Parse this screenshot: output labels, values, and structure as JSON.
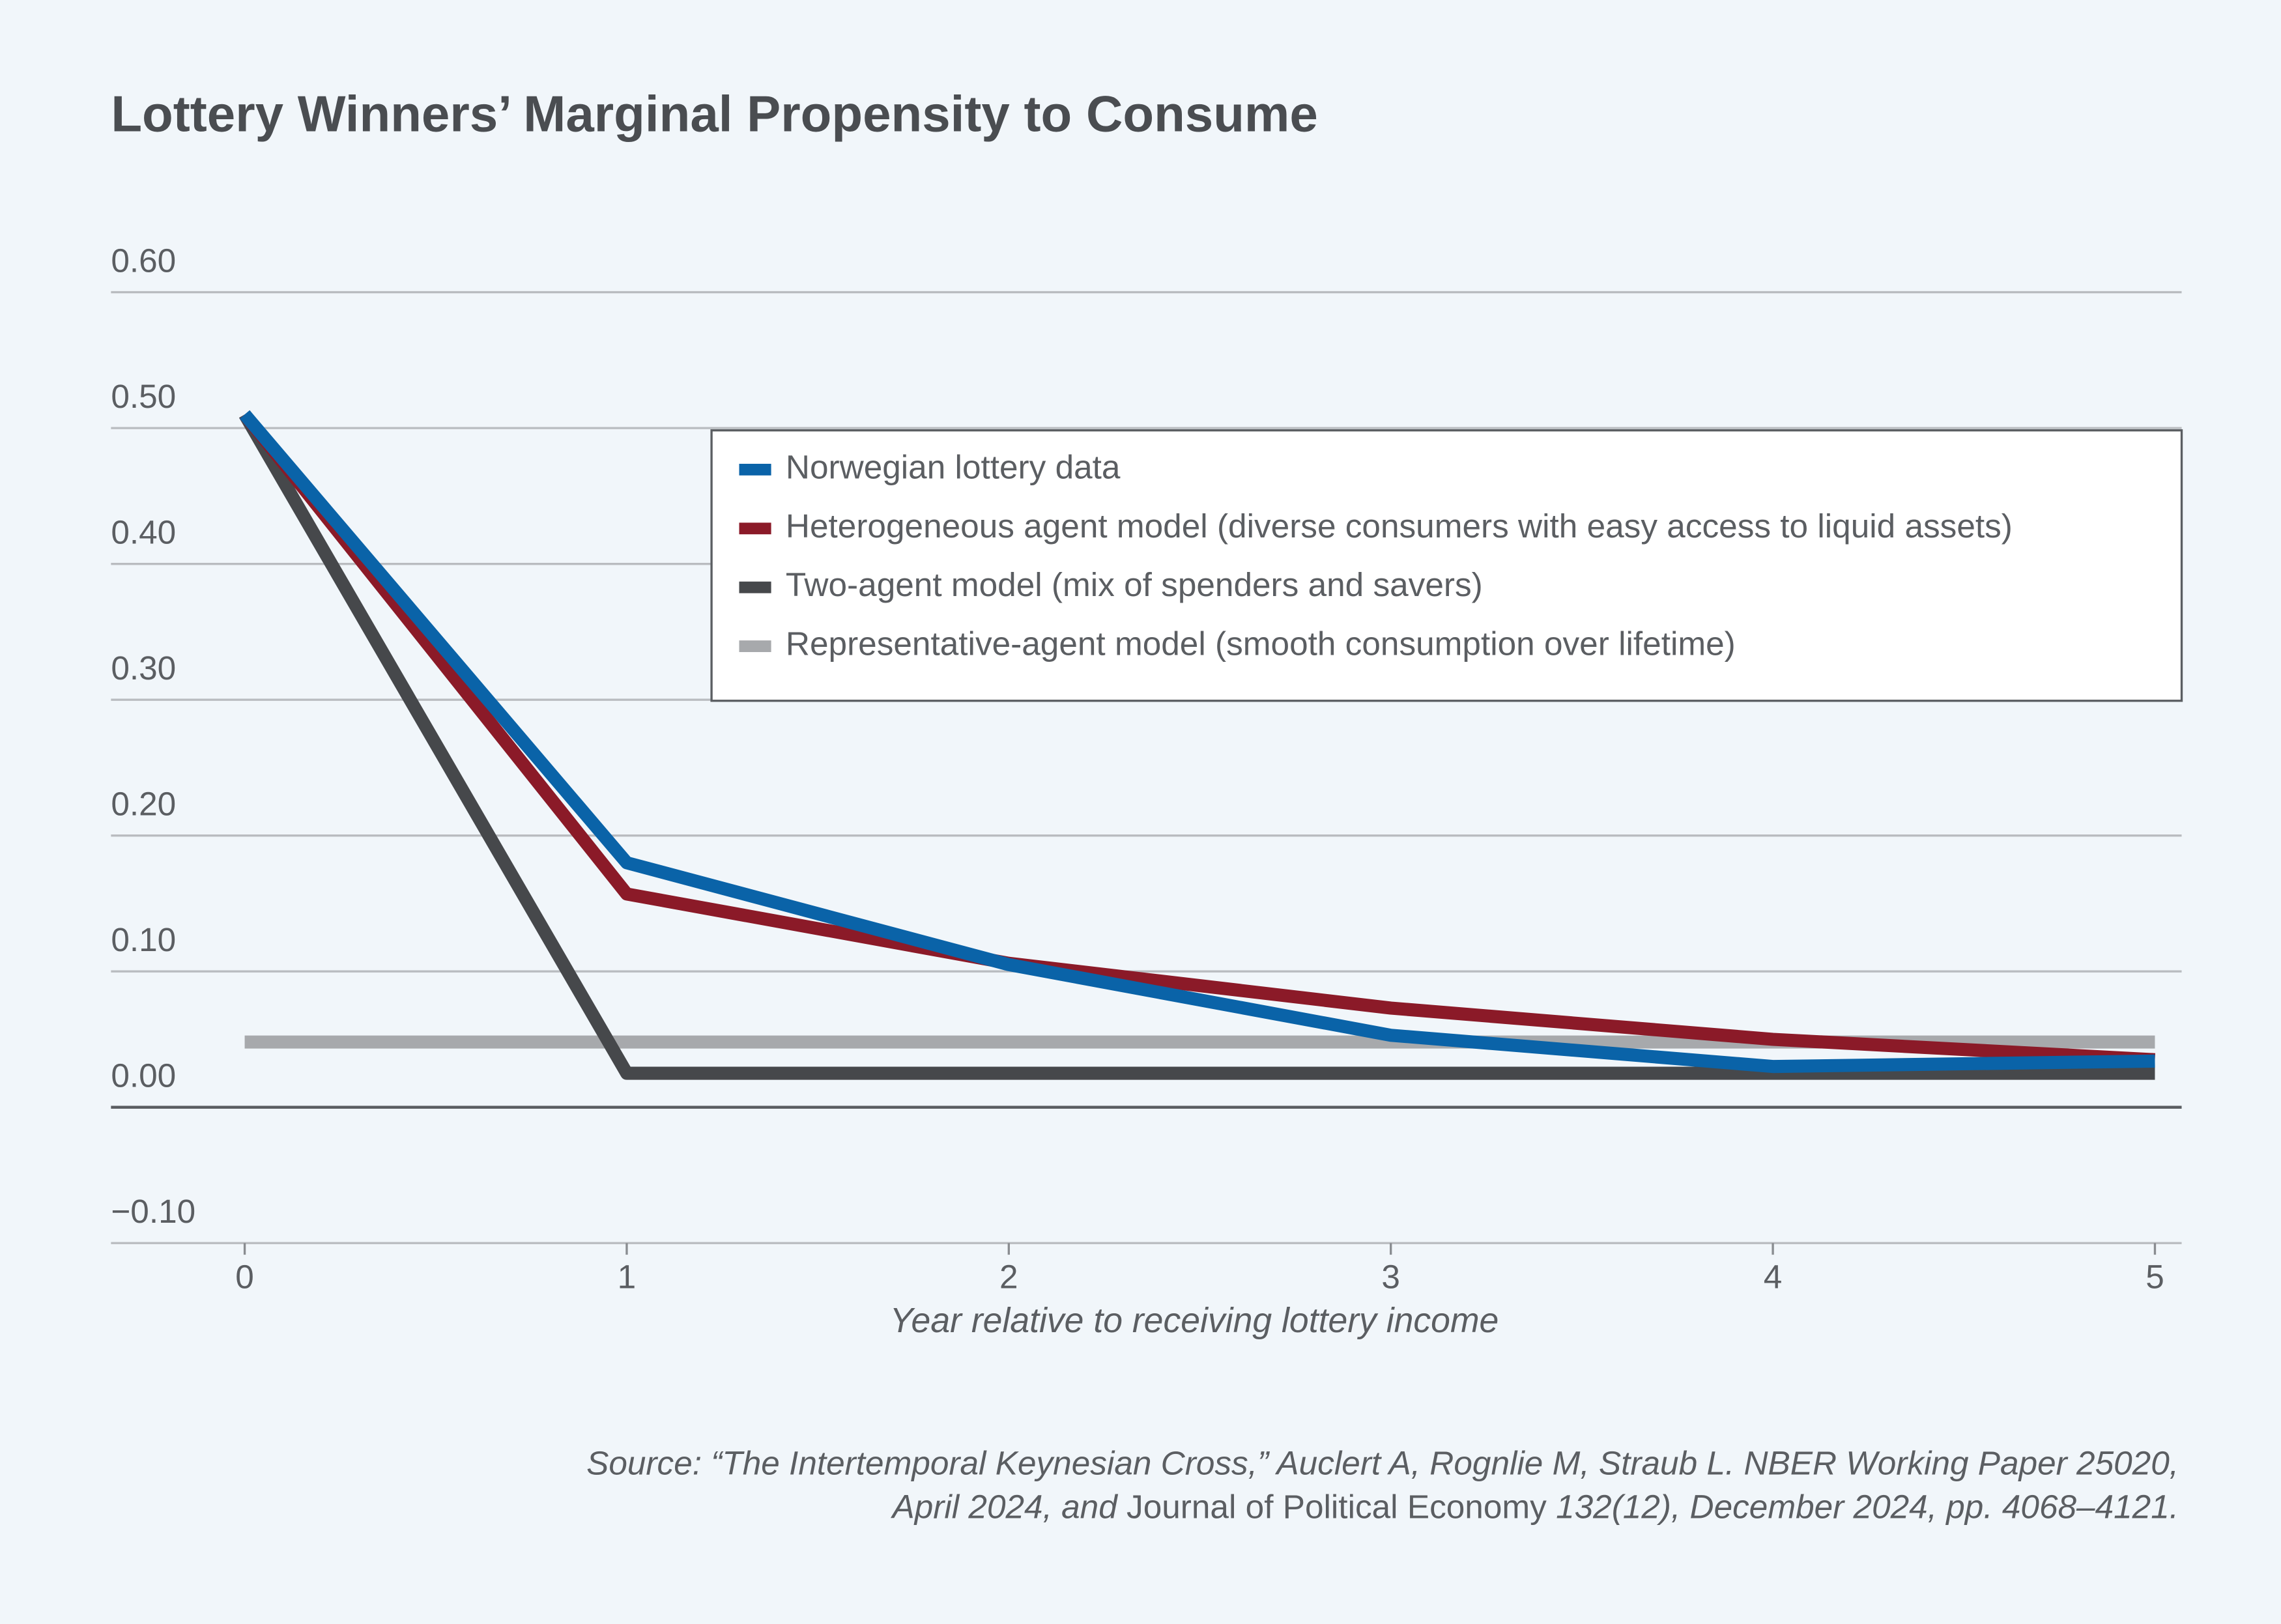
{
  "chart_data": {
    "type": "line",
    "title": "Lottery Winners’ Marginal Propensity to Consume",
    "x_label": "Year relative to receiving lottery income",
    "source": [
      "Source: “The Intertemporal Keynesian Cross,” Auclert A, Rognlie M, Straub L. NBER Working Paper 25020,",
      [
        "April 2024, and",
        "Journal of Political Economy",
        "132(12), December 2024, pp. 4068–4121."
      ]
    ],
    "x": [
      0,
      1,
      2,
      3,
      4,
      5
    ],
    "xlim": [
      -0.35,
      5.07
    ],
    "xticks": [
      0,
      1,
      2,
      3,
      4,
      5
    ],
    "ylim": [
      -0.1,
      0.6
    ],
    "yticks": [
      {
        "value": -0.1,
        "label": "−0.10"
      },
      {
        "value": 0,
        "label": "0.00"
      },
      {
        "value": 0.1,
        "label": "0.10"
      },
      {
        "value": 0.2,
        "label": "0.20"
      },
      {
        "value": 0.3,
        "label": "0.30"
      },
      {
        "value": 0.4,
        "label": "0.40"
      },
      {
        "value": 0.5,
        "label": "0.50"
      },
      {
        "value": 0.6,
        "label": "0.60"
      }
    ],
    "grid": true,
    "legend": "upper right",
    "series": [
      {
        "name": "Norwegian lottery data",
        "color": "#0a63a8",
        "values": [
          0.51,
          0.18,
          0.105,
          0.053,
          0.03,
          0.034
        ]
      },
      {
        "name": "Heterogeneous agent model (diverse consumers with easy access to liquid assets)",
        "color": "#8b1a28",
        "values": [
          0.51,
          0.157,
          0.106,
          0.073,
          0.05,
          0.035
        ]
      },
      {
        "name": "Two-agent model (mix of spenders and savers)",
        "color": "#46484b",
        "values": [
          0.51,
          0.025,
          0.025,
          0.025,
          0.025,
          0.025
        ]
      },
      {
        "name": "Representative-agent model (smooth consumption over lifetime)",
        "color": "#a7a9ac",
        "values": [
          0.048,
          0.048,
          0.048,
          0.048,
          0.048,
          0.048
        ]
      }
    ]
  }
}
